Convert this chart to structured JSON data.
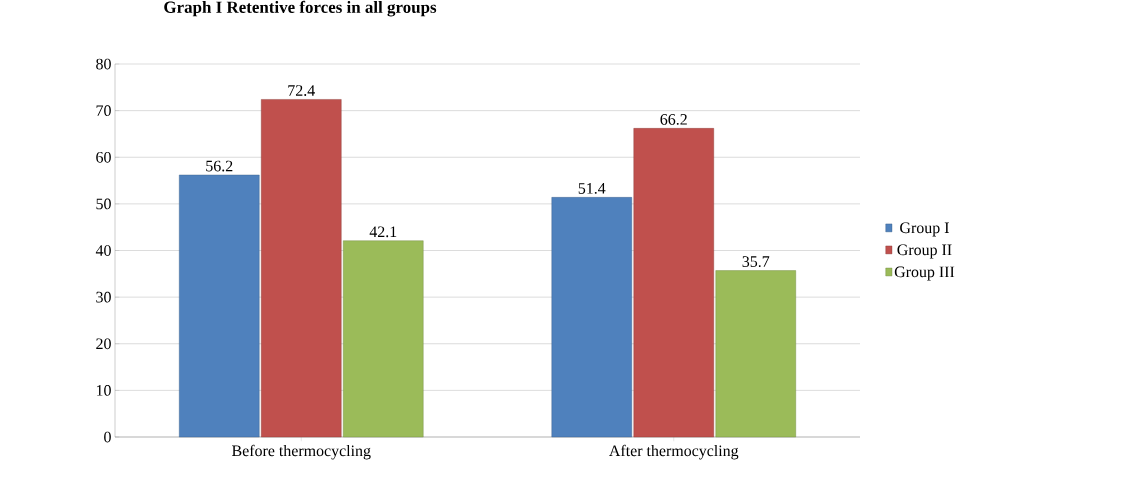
{
  "chart_data": {
    "type": "bar",
    "title": "Graph I Retentive forces in all groups",
    "categories": [
      "Before thermocycling",
      "After thermocycling"
    ],
    "series": [
      {
        "name": "Group I",
        "color": "#4f81bd",
        "values": [
          56.2,
          51.4
        ]
      },
      {
        "name": "Group II",
        "color": "#c0504d",
        "values": [
          72.4,
          66.2
        ]
      },
      {
        "name": "Group III",
        "color": "#9bbb59",
        "values": [
          42.1,
          35.7
        ]
      }
    ],
    "ylim": [
      0,
      80
    ],
    "yticks": [
      0,
      10,
      20,
      30,
      40,
      50,
      60,
      70,
      80
    ],
    "grid": "y",
    "legend": "right",
    "data_labels": true
  }
}
